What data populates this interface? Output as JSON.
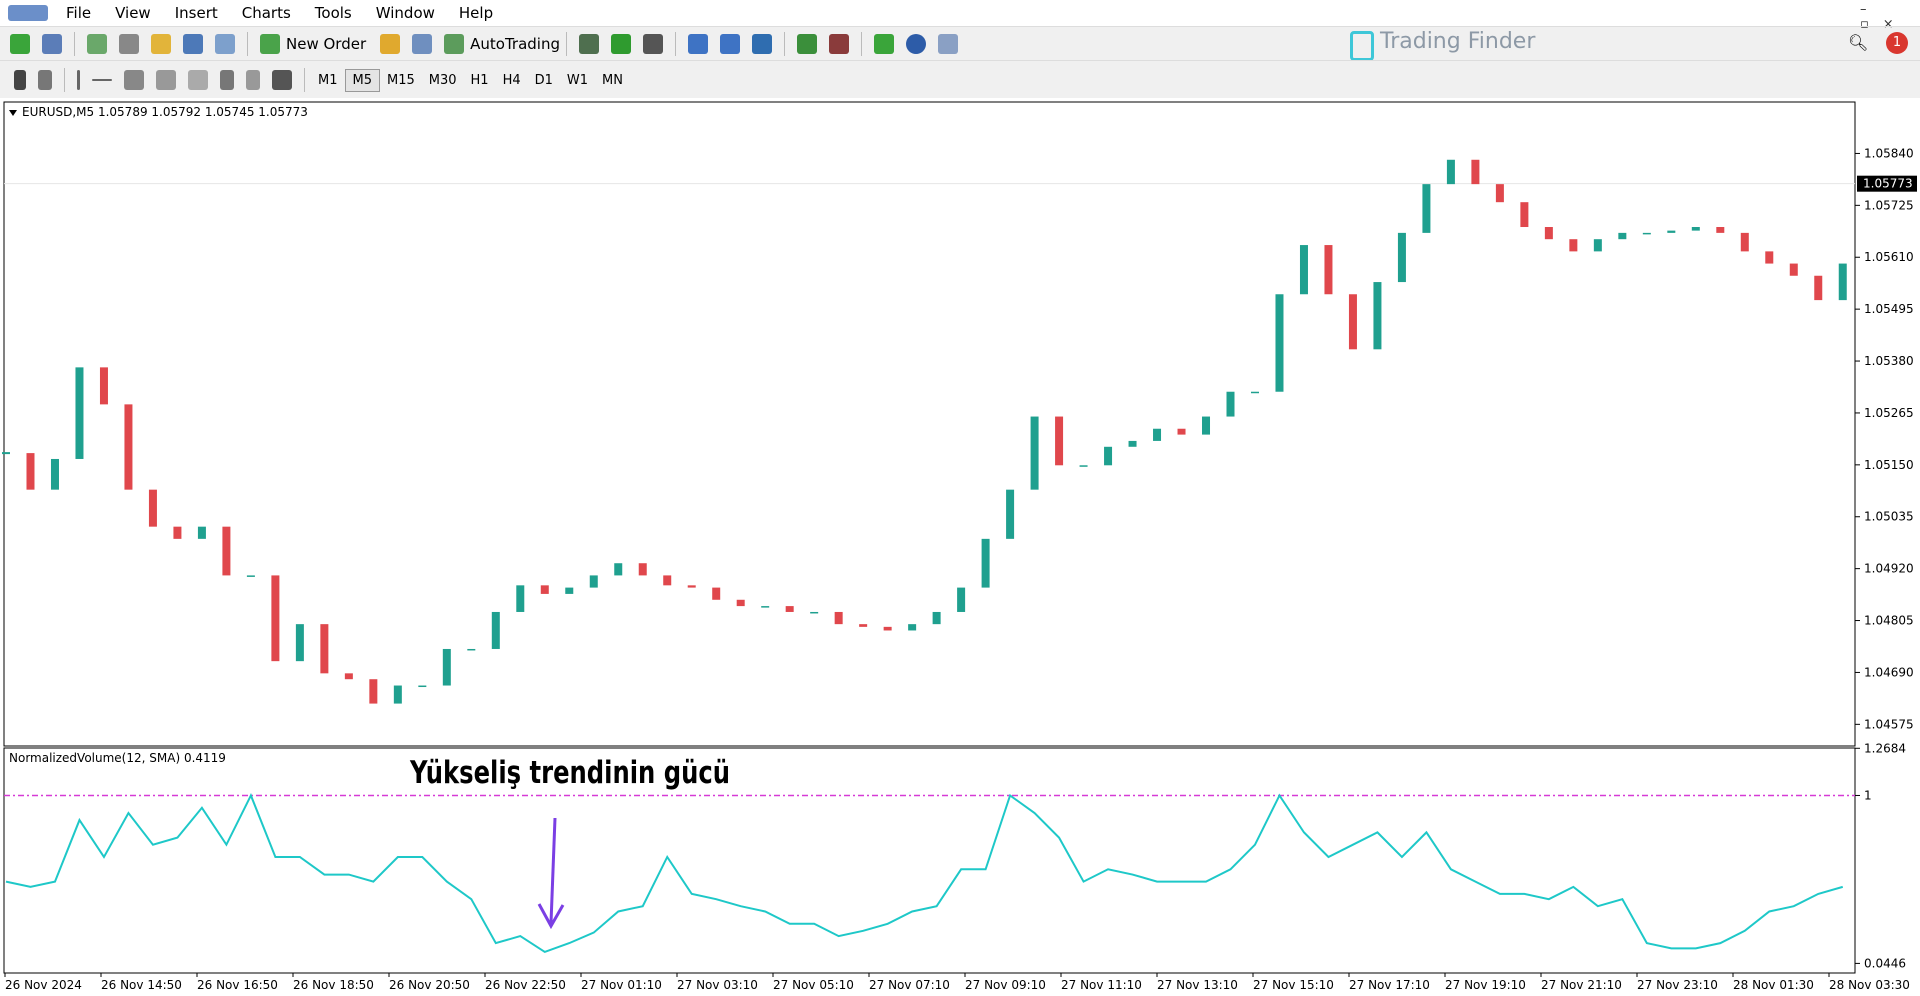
{
  "menu": [
    "File",
    "View",
    "Insert",
    "Charts",
    "Tools",
    "Window",
    "Help"
  ],
  "toolbar": {
    "new_order": "New Order",
    "auto_trading": "AutoTrading",
    "timeframes": [
      "M1",
      "M5",
      "M15",
      "M30",
      "H1",
      "H4",
      "D1",
      "W1",
      "MN"
    ]
  },
  "logo": "Trading Finder",
  "notifications": 1,
  "annotation": "Yükseliş trendinin gücü",
  "time_axis": [
    "26 Nov 2024",
    "26 Nov 14:50",
    "26 Nov 16:50",
    "26 Nov 18:50",
    "26 Nov 20:50",
    "26 Nov 22:50",
    "27 Nov 01:10",
    "27 Nov 03:10",
    "27 Nov 05:10",
    "27 Nov 07:10",
    "27 Nov 09:10",
    "27 Nov 11:10",
    "27 Nov 13:10",
    "27 Nov 15:10",
    "27 Nov 17:10",
    "27 Nov 19:10",
    "27 Nov 21:10",
    "27 Nov 23:10",
    "28 Nov 01:30",
    "28 Nov 03:30"
  ],
  "chart_data": [
    {
      "type": "candlestick",
      "title": "EURUSD,M5 1.05789 1.05792 1.05745 1.05773",
      "up_color": "#1fa08f",
      "down_color": "#e0474c",
      "values": [
        1.05176,
        1.05095,
        1.05163,
        1.05366,
        1.05284,
        1.05095,
        1.05013,
        1.04986,
        1.05013,
        1.04905,
        1.04905,
        1.04715,
        1.04797,
        1.04688,
        1.04675,
        1.04621,
        1.04661,
        1.04661,
        1.04742,
        1.04742,
        1.04824,
        1.04883,
        1.04864,
        1.04878,
        1.04905,
        1.04932,
        1.04905,
        1.04883,
        1.04878,
        1.04851,
        1.04837,
        1.04837,
        1.04824,
        1.04824,
        1.04797,
        1.04791,
        1.04783,
        1.04797,
        1.04824,
        1.04878,
        1.04986,
        1.05095,
        1.05257,
        1.05149,
        1.05149,
        1.0519,
        1.05203,
        1.0523,
        1.05217,
        1.05257,
        1.05312,
        1.05312,
        1.05528,
        1.05637,
        1.05528,
        1.05406,
        1.05555,
        1.05664,
        1.05772,
        1.05826,
        1.05772,
        1.05732,
        1.05677,
        1.0565,
        1.05623,
        1.0565,
        1.05664,
        1.05664,
        1.05669,
        1.05677,
        1.05664,
        1.05623,
        1.05596,
        1.05569,
        1.05515,
        1.05596
      ],
      "ylim": [
        1.04527,
        1.05954
      ],
      "yticks": [
        {
          "value": 1.0584,
          "label": "1.05840"
        },
        {
          "value": 1.05725,
          "label": "1.05725"
        },
        {
          "value": 1.0561,
          "label": "1.05610"
        },
        {
          "value": 1.05495,
          "label": "1.05495"
        },
        {
          "value": 1.0538,
          "label": "1.05380"
        },
        {
          "value": 1.05265,
          "label": "1.05265"
        },
        {
          "value": 1.0515,
          "label": "1.05150"
        },
        {
          "value": 1.05035,
          "label": "1.05035"
        },
        {
          "value": 1.0492,
          "label": "1.04920"
        },
        {
          "value": 1.04805,
          "label": "1.04805"
        },
        {
          "value": 1.0469,
          "label": "1.04690"
        },
        {
          "value": 1.04575,
          "label": "1.04575"
        }
      ],
      "last_price": {
        "value": 1.05773,
        "label": "1.05773"
      }
    },
    {
      "type": "line",
      "title": "NormalizedVolume(12, SMA) 0.4119",
      "color": "#1ec8c8",
      "values": [
        0.51,
        0.48,
        0.51,
        0.86,
        0.65,
        0.9,
        0.72,
        0.76,
        0.93,
        0.72,
        1.0,
        0.65,
        0.65,
        0.55,
        0.55,
        0.51,
        0.65,
        0.65,
        0.51,
        0.41,
        0.16,
        0.2,
        0.11,
        0.16,
        0.22,
        0.34,
        0.37,
        0.65,
        0.44,
        0.41,
        0.37,
        0.34,
        0.27,
        0.27,
        0.2,
        0.23,
        0.27,
        0.34,
        0.37,
        0.58,
        0.58,
        1.0,
        0.9,
        0.76,
        0.51,
        0.58,
        0.55,
        0.51,
        0.51,
        0.51,
        0.58,
        0.72,
        1.0,
        0.79,
        0.65,
        0.72,
        0.79,
        0.65,
        0.79,
        0.58,
        0.51,
        0.44,
        0.44,
        0.41,
        0.48,
        0.37,
        0.41,
        0.16,
        0.13,
        0.13,
        0.16,
        0.23,
        0.34,
        0.37,
        0.44,
        0.48
      ],
      "ylim": [
        -0.01,
        1.27
      ],
      "yticks": [
        1.2684,
        1,
        0.0446
      ],
      "level": 1,
      "level_color": "#d63ad6"
    }
  ]
}
